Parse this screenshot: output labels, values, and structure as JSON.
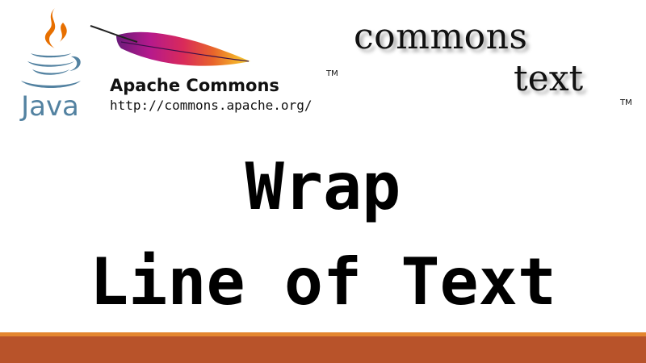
{
  "logos": {
    "java": {
      "wordmark": "Java"
    },
    "apache": {
      "title": "Apache Commons",
      "trademark": "TM",
      "url": "http://commons.apache.org/"
    },
    "commons_text": {
      "word_1": "commons",
      "word_2": "text",
      "trademark": "TM"
    }
  },
  "title": {
    "line_1": "Wrap",
    "line_2": "Line of Text"
  },
  "colors": {
    "java_blue": "#5382a1",
    "java_orange": "#e76f00",
    "footer_thin": "#e4862f",
    "footer_bar": "#b8532a"
  }
}
